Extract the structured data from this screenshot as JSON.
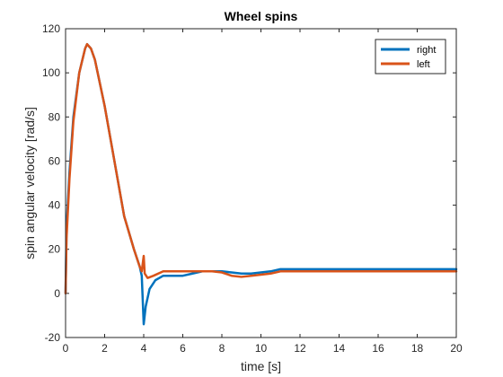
{
  "chart_data": {
    "type": "line",
    "title": "Wheel spins",
    "xlabel": "time [s]",
    "ylabel": "spin angular velocity [rad/s]",
    "xlim": [
      0,
      20
    ],
    "ylim": [
      -20,
      120
    ],
    "xticks": [
      0,
      2,
      4,
      6,
      8,
      10,
      12,
      14,
      16,
      18,
      20
    ],
    "yticks": [
      -20,
      0,
      20,
      40,
      60,
      80,
      100,
      120
    ],
    "grid": false,
    "legend_position": "top-right",
    "series": [
      {
        "name": "right",
        "color": "#0072BD",
        "points": [
          [
            0,
            0
          ],
          [
            0.05,
            30
          ],
          [
            0.2,
            55
          ],
          [
            0.4,
            80
          ],
          [
            0.7,
            100
          ],
          [
            1.0,
            111
          ],
          [
            1.1,
            113
          ],
          [
            1.3,
            111
          ],
          [
            1.5,
            106
          ],
          [
            2.0,
            85
          ],
          [
            2.5,
            60
          ],
          [
            3.0,
            35
          ],
          [
            3.5,
            20
          ],
          [
            3.8,
            12
          ],
          [
            3.9,
            8
          ],
          [
            4.0,
            -14
          ],
          [
            4.1,
            -6
          ],
          [
            4.3,
            2
          ],
          [
            4.6,
            6
          ],
          [
            5.0,
            8
          ],
          [
            5.5,
            8
          ],
          [
            6.0,
            8
          ],
          [
            6.5,
            9
          ],
          [
            7.0,
            10
          ],
          [
            7.5,
            10
          ],
          [
            8.0,
            10
          ],
          [
            8.5,
            9.5
          ],
          [
            9.0,
            9
          ],
          [
            9.5,
            9
          ],
          [
            10.0,
            9.5
          ],
          [
            10.5,
            10
          ],
          [
            11.0,
            11
          ],
          [
            12.0,
            11
          ],
          [
            13.0,
            11
          ],
          [
            14.0,
            11
          ],
          [
            16.0,
            11
          ],
          [
            18.0,
            11
          ],
          [
            20.0,
            11
          ]
        ]
      },
      {
        "name": "left",
        "color": "#D95319",
        "points": [
          [
            0,
            0
          ],
          [
            0.05,
            25
          ],
          [
            0.2,
            52
          ],
          [
            0.4,
            78
          ],
          [
            0.7,
            100
          ],
          [
            1.0,
            111
          ],
          [
            1.1,
            113
          ],
          [
            1.3,
            111
          ],
          [
            1.5,
            106
          ],
          [
            2.0,
            85
          ],
          [
            2.5,
            60
          ],
          [
            3.0,
            35
          ],
          [
            3.5,
            20
          ],
          [
            3.8,
            12
          ],
          [
            3.9,
            10
          ],
          [
            4.0,
            17
          ],
          [
            4.05,
            9
          ],
          [
            4.2,
            7
          ],
          [
            4.5,
            8
          ],
          [
            5.0,
            10
          ],
          [
            5.5,
            10
          ],
          [
            6.0,
            10
          ],
          [
            7.0,
            10
          ],
          [
            7.5,
            10
          ],
          [
            8.0,
            9.5
          ],
          [
            8.5,
            8
          ],
          [
            9.0,
            7.5
          ],
          [
            9.5,
            8
          ],
          [
            10.0,
            8.5
          ],
          [
            10.5,
            9
          ],
          [
            11.0,
            10
          ],
          [
            12.0,
            10
          ],
          [
            13.0,
            10
          ],
          [
            14.0,
            10
          ],
          [
            16.0,
            10
          ],
          [
            18.0,
            10
          ],
          [
            20.0,
            10
          ]
        ]
      }
    ]
  }
}
